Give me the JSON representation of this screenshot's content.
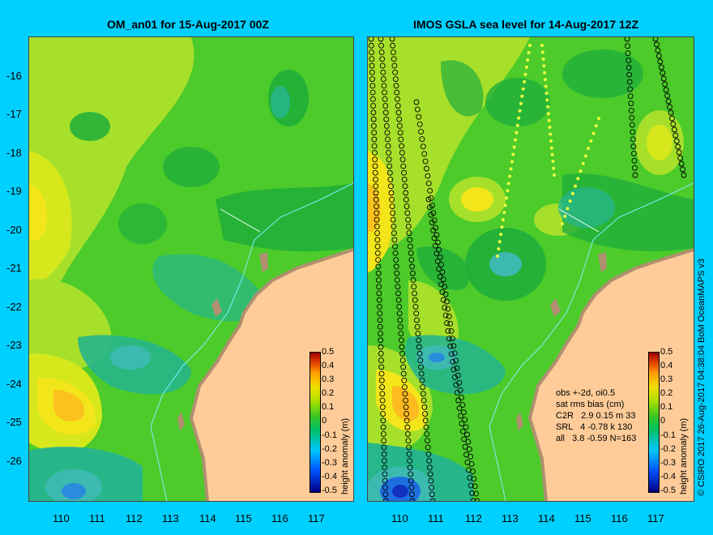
{
  "left": {
    "title": "OM_an01 for 15-Aug-2017 00Z"
  },
  "right": {
    "title": "IMOS GSLA sea level  for 14-Aug-2017 12Z"
  },
  "y_ticks": [
    "-16",
    "-17",
    "-18",
    "-19",
    "-20",
    "-21",
    "-22",
    "-23",
    "-24",
    "-25",
    "-26"
  ],
  "x_ticks": [
    "110",
    "111",
    "112",
    "113",
    "114",
    "115",
    "116",
    "117"
  ],
  "colorbar": {
    "label": "height anomaly (m)",
    "ticks": [
      "0.5",
      "0.4",
      "0.3",
      "0.2",
      "0.1",
      "0",
      "-0.1",
      "-0.2",
      "-0.3",
      "-0.4",
      "-0.5"
    ]
  },
  "obs_info": {
    "l1": "obs +-2d, oi0.5",
    "l2": "sat rms bias (cm)",
    "l3": "C2R   2.9 0.15 m 33",
    "l4": "SRL   4 -0.78 k 130",
    "l5": "all   3.8 -0.59 N=163"
  },
  "credit": "© CSIRO 2017   26-Aug-2017 04:38:04 BoM OceanMAPS v3",
  "colors": {
    "background": "#00d0ff",
    "land": "#ffcc99",
    "coast": "#b09070",
    "zero_green": "#4ccb2a",
    "dark_green": "#1fae3a",
    "teal": "#27b68a",
    "yellow_green": "#a7e02a",
    "yellow": "#f2e61a",
    "orange": "#ffb020",
    "blue": "#1d6fe0",
    "dark_blue": "#1030c0",
    "track_marker": "#000000"
  }
}
